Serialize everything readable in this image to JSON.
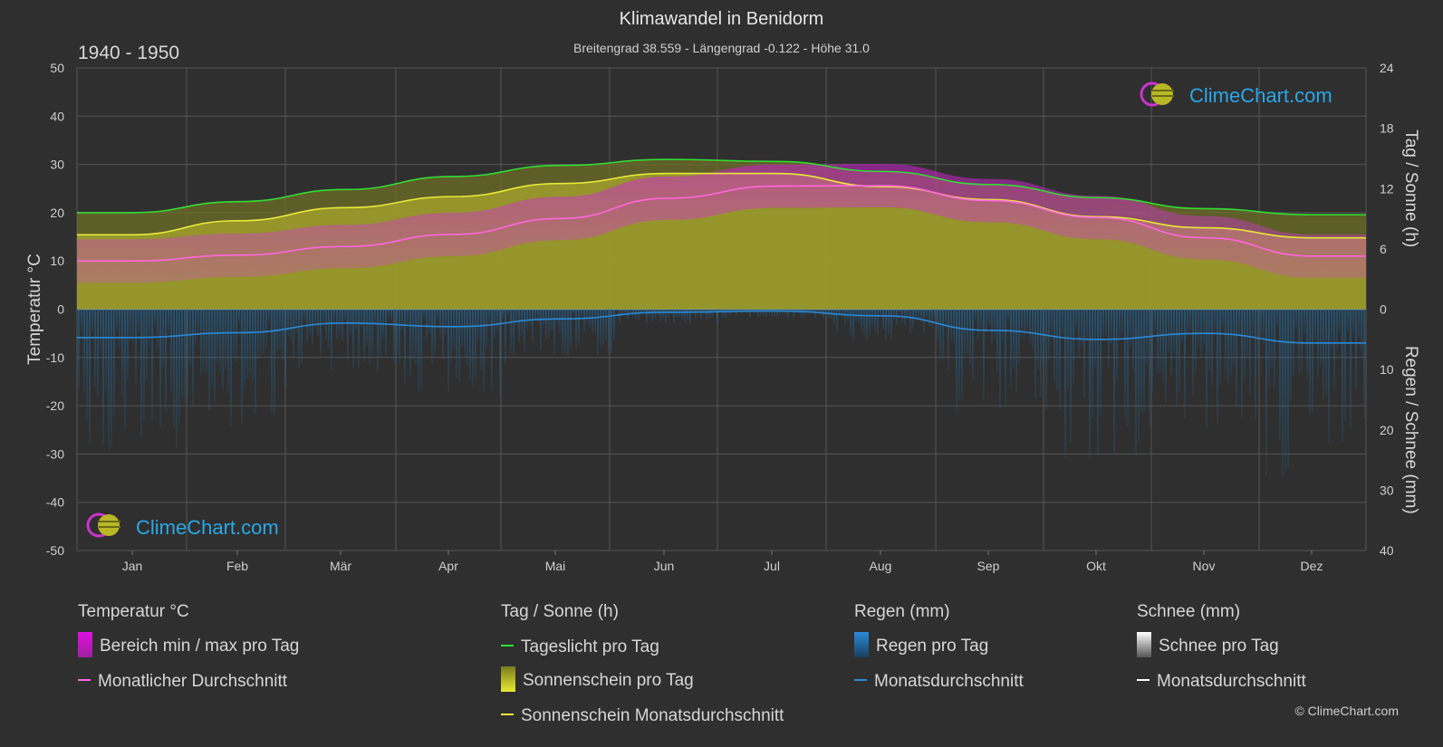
{
  "header": {
    "title": "Klimawandel in Benidorm",
    "subtitle": "Breitengrad 38.559 - Längengrad -0.122 - Höhe 31.0",
    "period": "1940 - 1950"
  },
  "brand": {
    "name": "ClimeChart.com",
    "copyright": "© ClimeChart.com"
  },
  "chart_data": {
    "type": "area",
    "months": [
      "Jan",
      "Feb",
      "Mär",
      "Apr",
      "Mai",
      "Jun",
      "Jul",
      "Aug",
      "Sep",
      "Okt",
      "Nov",
      "Dez"
    ],
    "axes": {
      "left": {
        "label": "Temperatur °C",
        "range": [
          -50,
          50
        ],
        "ticks": [
          50,
          40,
          30,
          20,
          10,
          0,
          -10,
          -20,
          -30,
          -40,
          -50
        ]
      },
      "right_top": {
        "label": "Tag / Sonne (h)",
        "range": [
          0,
          24
        ],
        "ticks": [
          24,
          18,
          12,
          6,
          0
        ]
      },
      "right_bottom": {
        "label": "Regen / Schnee (mm)",
        "range": [
          0,
          40
        ],
        "ticks": [
          0,
          10,
          20,
          30,
          40
        ]
      }
    },
    "grid": true,
    "series": [
      {
        "name": "Tageslicht pro Tag",
        "unit": "h",
        "color": "#33dd33",
        "values": [
          9.6,
          10.7,
          11.9,
          13.2,
          14.3,
          14.9,
          14.7,
          13.7,
          12.4,
          11.1,
          10.0,
          9.4
        ]
      },
      {
        "name": "Sonnenschein Monatsdurchschnitt",
        "unit": "h",
        "color": "#e8e83a",
        "values": [
          7.4,
          8.8,
          10.1,
          11.2,
          12.5,
          13.5,
          13.5,
          12.2,
          10.9,
          9.2,
          8.1,
          7.1
        ]
      },
      {
        "name": "Monatlicher Durchschnitt",
        "unit": "°C",
        "color": "#ff66dd",
        "values": [
          10.0,
          11.2,
          13.0,
          15.5,
          18.8,
          23.0,
          25.5,
          25.6,
          22.5,
          19.0,
          14.8,
          11.0
        ]
      },
      {
        "name": "Regen Monatsdurchschnitt",
        "unit": "mm",
        "color": "#2a8ad8",
        "values": [
          4.7,
          3.9,
          2.3,
          2.9,
          1.6,
          0.5,
          0.3,
          1.1,
          3.5,
          5.0,
          4.0,
          5.6
        ]
      }
    ]
  },
  "legend": {
    "temperature": {
      "title": "Temperatur °C",
      "range_label": "Bereich min / max pro Tag",
      "avg_label": "Monatlicher Durchschnitt"
    },
    "sun": {
      "title": "Tag / Sonne (h)",
      "daylight_label": "Tageslicht pro Tag",
      "sunshine_label": "Sonnenschein pro Tag",
      "sunshine_avg_label": "Sonnenschein Monatsdurchschnitt"
    },
    "rain": {
      "title": "Regen (mm)",
      "rain_label": "Regen pro Tag",
      "avg_label": "Monatsdurchschnitt"
    },
    "snow": {
      "title": "Schnee (mm)",
      "snow_label": "Schnee pro Tag",
      "avg_label": "Monatsdurchschnitt"
    }
  },
  "colors": {
    "background": "#2f2f2f",
    "temp_range": "#cc22cc",
    "sunshine_fill": "#a6a62a",
    "rain_bars": "#1f5f8f",
    "grid": "#555555"
  }
}
